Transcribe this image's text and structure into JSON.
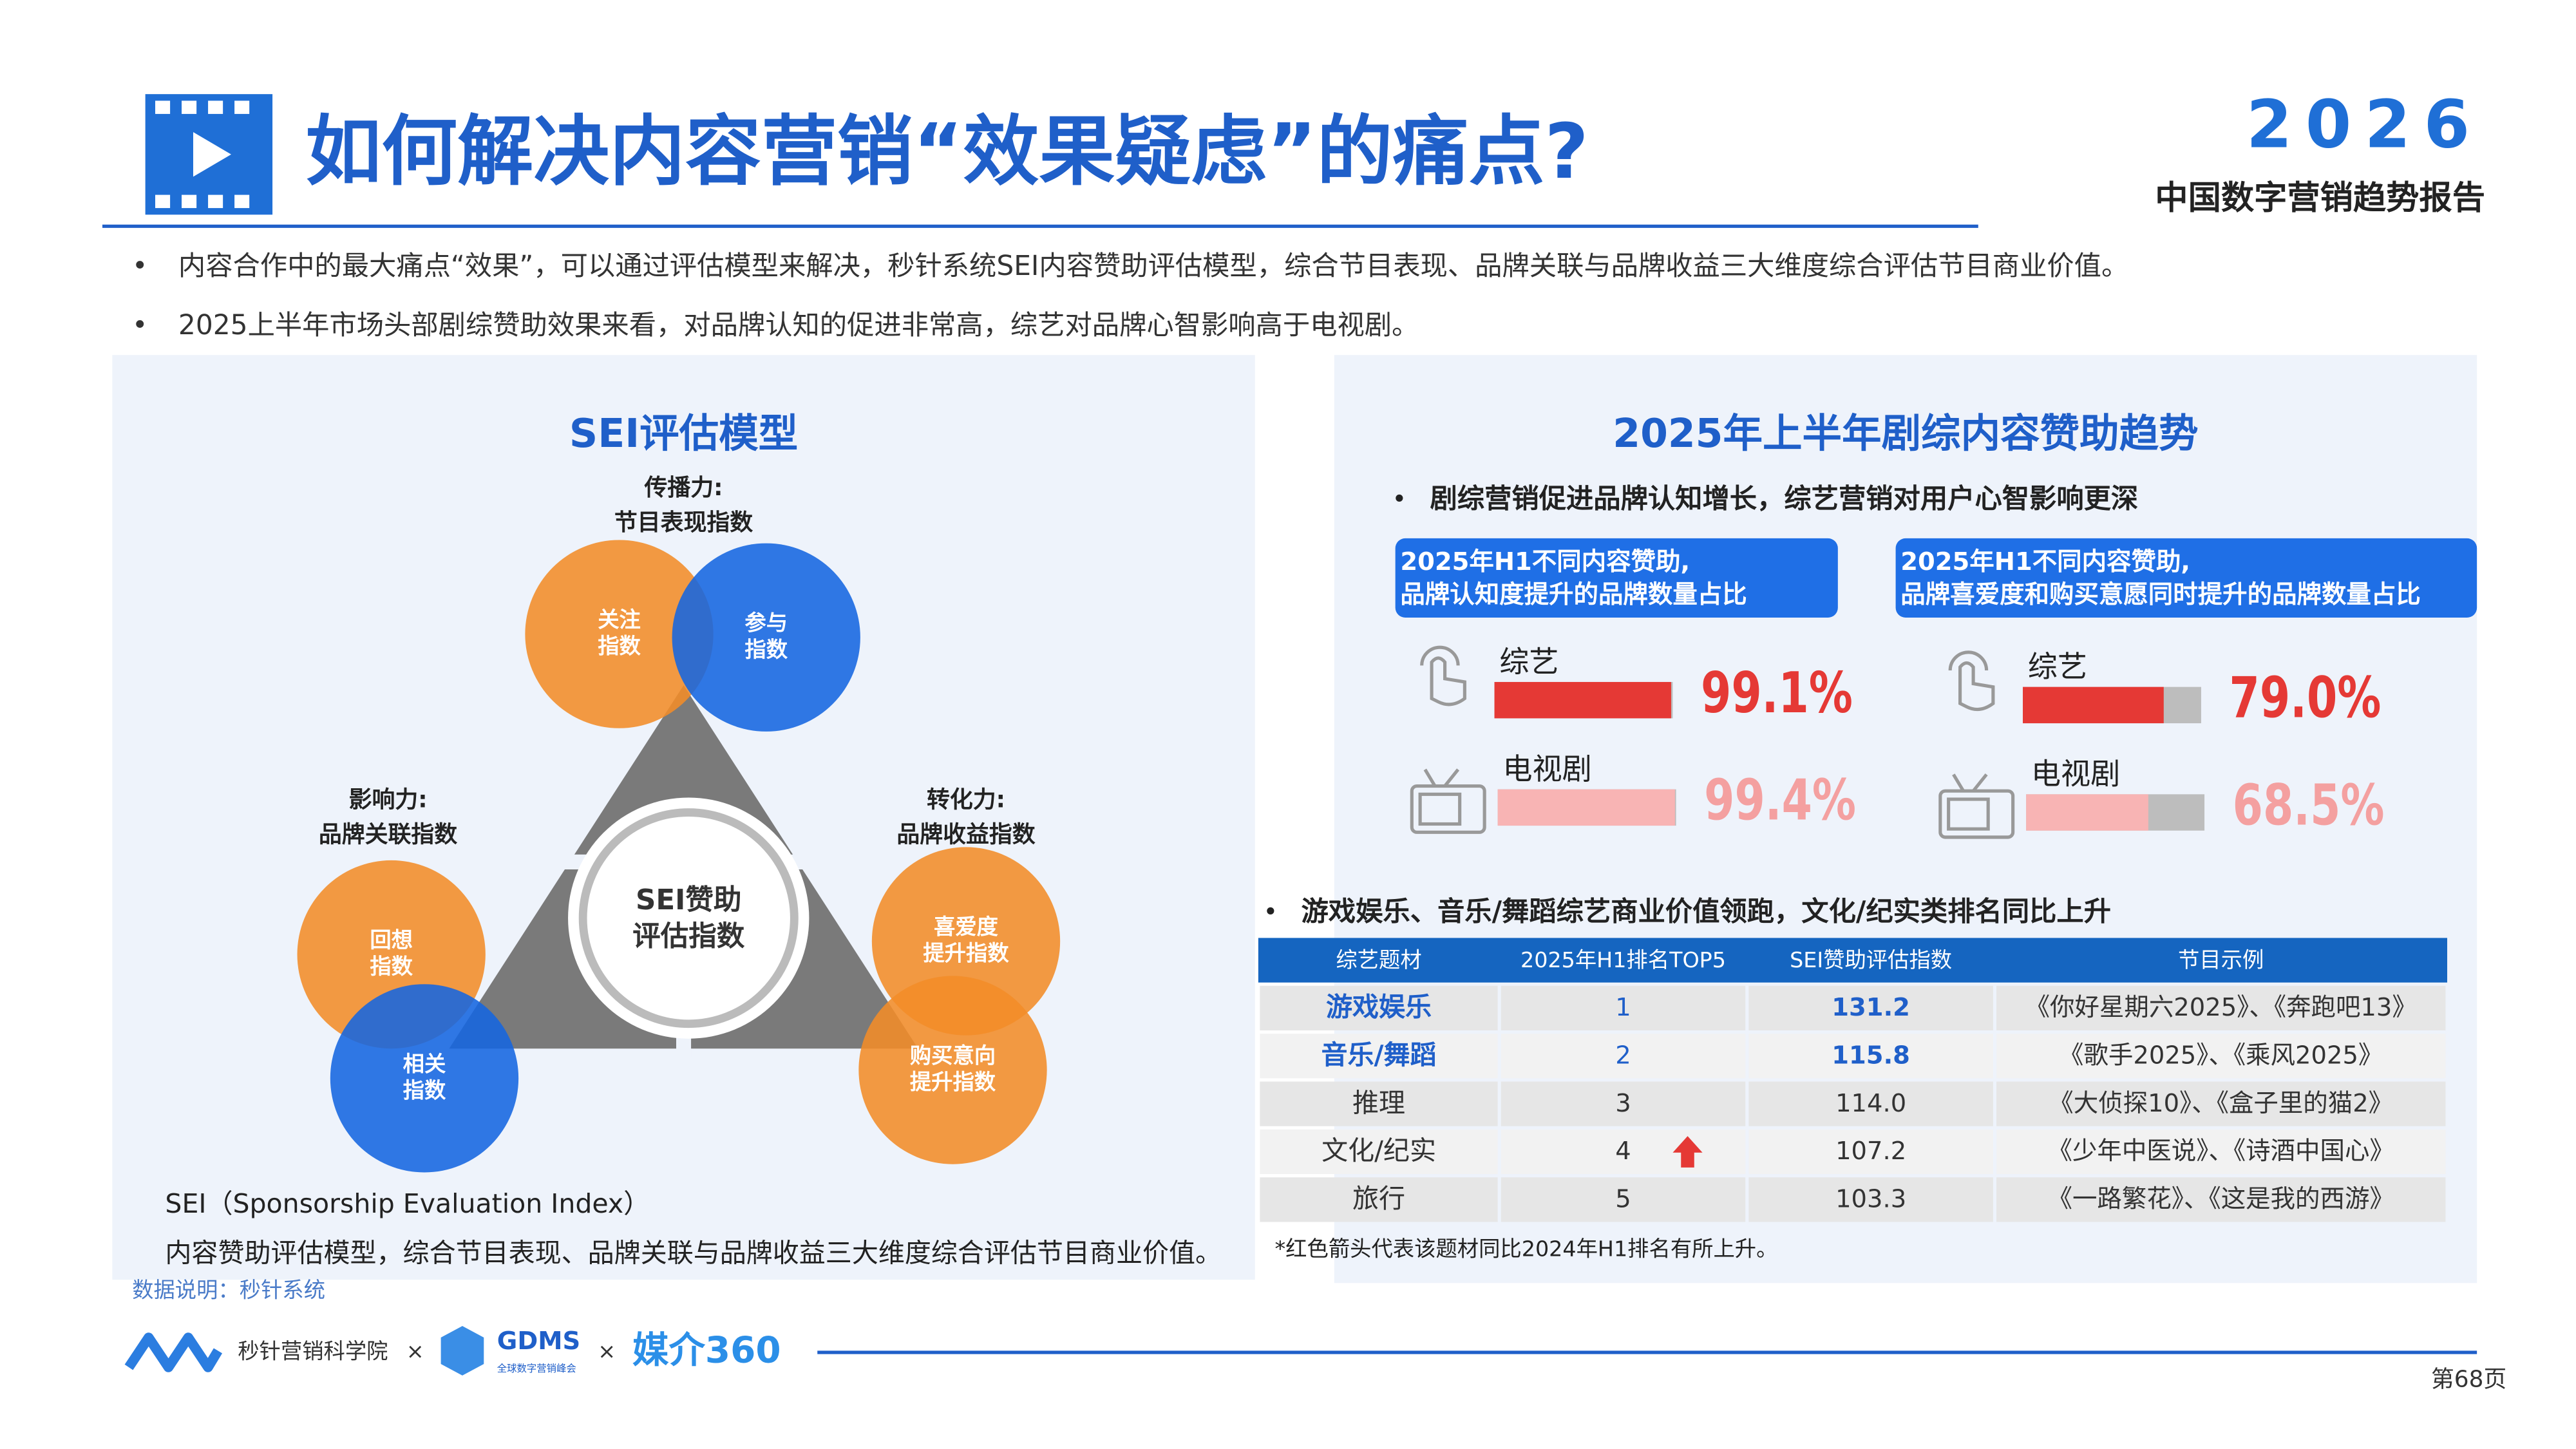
{
  "header": {
    "title": "如何解决内容营销“效果疑虑”的痛点?",
    "brand_year": "2026",
    "report_name": "中国数字营销趋势报告"
  },
  "bullets": [
    "内容合作中的最大痛点“效果”，可以通过评估模型来解决，秒针系统SEI内容赞助评估模型，综合节目表现、品牌关联与品牌收益三大维度综合评估节目商业价值。",
    "2025上半年市场头部剧综赞助效果来看，对品牌认知的促进非常高，综艺对品牌心智影响高于电视剧。"
  ],
  "left_panel": {
    "title": "SEI评估模型",
    "top_label": [
      "传播力:",
      "节目表现指数"
    ],
    "left_label": [
      "影响力:",
      "品牌关联指数"
    ],
    "right_label": [
      "转化力:",
      "品牌收益指数"
    ],
    "center": [
      "SEI赞助",
      "评估指数"
    ],
    "circles": [
      [
        "关注",
        "指数"
      ],
      [
        "参与",
        "指数"
      ],
      [
        "回想",
        "指数"
      ],
      [
        "相关",
        "指数"
      ],
      [
        "喜爱度",
        "提升指数"
      ],
      [
        "购买意向",
        "提升指数"
      ]
    ],
    "note_title": "SEI（Sponsorship Evaluation Index）",
    "note_text": "内容赞助评估模型，综合节目表现、品牌关联与品牌收益三大维度综合评估节目商业价值。"
  },
  "source": "数据说明：秒针系统",
  "right_panel": {
    "title": "2025年上半年剧综内容赞助趋势",
    "subtitle": "剧综营销促进品牌认知增长，综艺营销对用户心智影响更深",
    "cards": [
      {
        "heading": [
          "2025年H1不同内容赞助,",
          "品牌认知度提升的品牌数量占比"
        ],
        "bars": [
          {
            "label": "综艺",
            "value": 99.1,
            "value_label": "99.1%"
          },
          {
            "label": "电视剧",
            "value": 99.4,
            "value_label": "99.4%"
          }
        ]
      },
      {
        "heading": [
          "2025年H1不同内容赞助,",
          "品牌喜爱度和购买意愿同时提升的品牌数量占比"
        ],
        "bars": [
          {
            "label": "综艺",
            "value": 79.0,
            "value_label": "79.0%"
          },
          {
            "label": "电视剧",
            "value": 68.5,
            "value_label": "68.5%"
          }
        ]
      }
    ],
    "table_subtitle": "游戏娱乐、音乐/舞蹈综艺商业价值领跑，文化/纪实类排名同比上升",
    "table": {
      "columns": [
        "综艺题材",
        "2025年H1排名TOP5",
        "SEI赞助评估指数",
        "节目示例"
      ],
      "rows": [
        [
          "游戏娱乐",
          "1",
          "131.2",
          "《你好星期六2025》、《奔跑吧13》"
        ],
        [
          "音乐/舞蹈",
          "2",
          "115.8",
          "《歌手2025》、《乘风2025》"
        ],
        [
          "推理",
          "3",
          "114.0",
          "《大侦探10》、《盒子里的猫2》"
        ],
        [
          "文化/纪实",
          "4",
          "107.2",
          "《少年中医说》、《诗酒中国心》"
        ],
        [
          "旅行",
          "5",
          "103.3",
          "《一路繁花》、《这是我的西游》"
        ]
      ],
      "highlight_rows": [
        0,
        1
      ],
      "arrow_row": 3
    },
    "footnote": "*红色箭头代表该题材同比2024年H1排名有所上升。"
  },
  "footer": {
    "partners": [
      "秒针营销科学院",
      "×",
      "GDMS",
      "全球数字营销峰会",
      "×",
      "媒介360"
    ],
    "page": "第68页"
  }
}
